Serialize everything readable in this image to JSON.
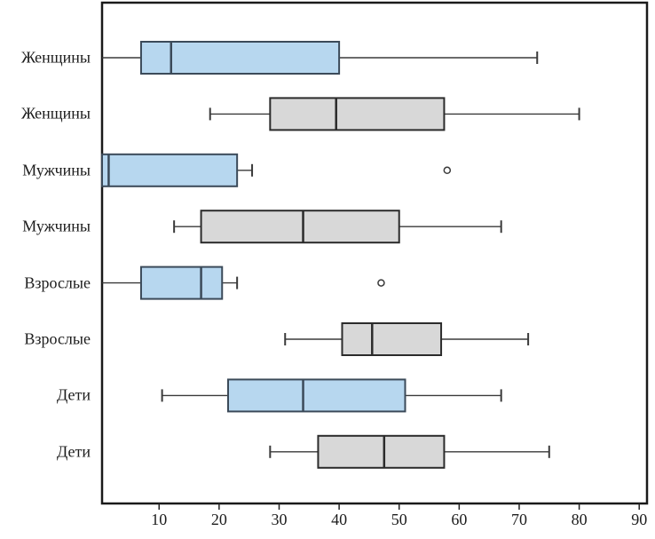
{
  "figure": {
    "background": "#ffffff",
    "title": ""
  },
  "chart_data": {
    "type": "boxplot",
    "orientation": "horizontal",
    "title": "",
    "xlabel": "",
    "ylabel": "",
    "grid": false,
    "legend": "none",
    "x_axis": {
      "min": 0.5,
      "max": 91.3,
      "ticks": [
        10,
        20,
        30,
        40,
        50,
        60,
        70,
        80,
        90
      ]
    },
    "colors": {
      "blue_fill": "#b7d7ef",
      "blue_border": "#3b4a59",
      "gray_fill": "#d8d8d8",
      "gray_border": "#2b2b2b",
      "whisker": "#3a3a3a",
      "outlier_stroke": "#3a3a3a",
      "tick": "#222222",
      "frame": "#1a1a1a"
    },
    "series": [
      {
        "label": "Женщины",
        "color": "blue",
        "whisker_low": 0.5,
        "q1": 7,
        "median": 12,
        "q3": 40,
        "whisker_high": 73,
        "outliers": []
      },
      {
        "label": "Женщины",
        "color": "gray",
        "whisker_low": 18.5,
        "q1": 28.5,
        "median": 39.5,
        "q3": 57.5,
        "whisker_high": 80,
        "outliers": []
      },
      {
        "label": "Мужчины",
        "color": "blue",
        "whisker_low": 0.5,
        "q1": 0.5,
        "median": 1.6,
        "q3": 23,
        "whisker_high": 25.5,
        "outliers": [
          58
        ]
      },
      {
        "label": "Мужчины",
        "color": "gray",
        "whisker_low": 12.5,
        "q1": 17,
        "median": 34,
        "q3": 50,
        "whisker_high": 67,
        "outliers": []
      },
      {
        "label": "Взрослые",
        "color": "blue",
        "whisker_low": 0.5,
        "q1": 7,
        "median": 17,
        "q3": 20.5,
        "whisker_high": 23,
        "outliers": [
          47
        ]
      },
      {
        "label": "Взрослые",
        "color": "gray",
        "whisker_low": 31,
        "q1": 40.5,
        "median": 45.5,
        "q3": 57,
        "whisker_high": 71.5,
        "outliers": []
      },
      {
        "label": "Дети",
        "color": "blue",
        "whisker_low": 10.5,
        "q1": 21.5,
        "median": 34,
        "q3": 51,
        "whisker_high": 67,
        "outliers": []
      },
      {
        "label": "Дети",
        "color": "gray",
        "whisker_low": 28.5,
        "q1": 36.5,
        "median": 47.5,
        "q3": 57.5,
        "whisker_high": 75,
        "outliers": []
      }
    ]
  }
}
